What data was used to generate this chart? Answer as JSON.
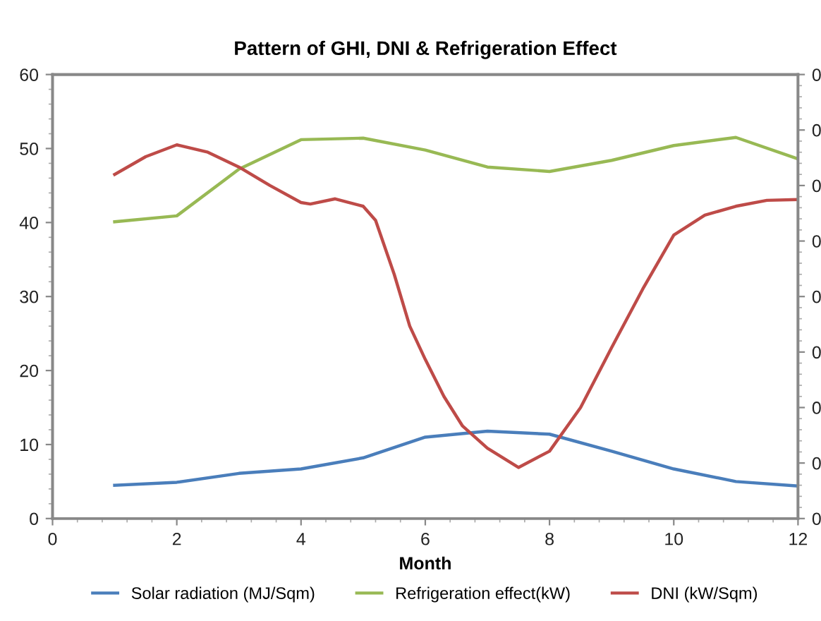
{
  "chart_data": {
    "type": "line",
    "title": "Pattern of GHI, DNI & Refrigeration Effect",
    "xlabel": "Month",
    "x": [
      1,
      2,
      3,
      4,
      5,
      6,
      7,
      8,
      9,
      10,
      11,
      12
    ],
    "series": [
      {
        "name": "Solar radiation (MJ/Sqm)",
        "color": "#4a7ebb",
        "values": [
          4.5,
          4.9,
          6.1,
          6.7,
          8.2,
          11,
          11.8,
          11.4,
          9.1,
          6.7,
          5.0,
          4.4
        ]
      },
      {
        "name": "Refrigeration effect(kW)",
        "color": "#98b954",
        "values": [
          40.1,
          40.9,
          47.2,
          51.2,
          51.4,
          49.8,
          47.5,
          46.9,
          48.4,
          50.4,
          51.5,
          48.6
        ]
      },
      {
        "name": "DNI (kW/Sqm)",
        "color": "#be4b48",
        "x": [
          1,
          1.5,
          2,
          2.5,
          3,
          3.5,
          4,
          4.15,
          4.55,
          5,
          5.2,
          5.5,
          5.75,
          6,
          6.3,
          6.6,
          7,
          7.5,
          8,
          8.5,
          9,
          9.5,
          10,
          10.5,
          11,
          11.5,
          12
        ],
        "values": [
          46.5,
          48.9,
          50.5,
          49.5,
          47.5,
          45,
          42.7,
          42.5,
          43.2,
          42.2,
          40.3,
          33,
          26,
          21.5,
          16.5,
          12.5,
          9.5,
          6.9,
          9.1,
          15,
          23.1,
          31,
          38.3,
          41,
          42.2,
          43,
          43.1
        ]
      }
    ],
    "xlim": [
      0,
      12
    ],
    "xticks": [
      0,
      2,
      4,
      6,
      8,
      10,
      12
    ],
    "ylim": [
      0,
      60
    ],
    "yticks": [
      0,
      10,
      20,
      30,
      40,
      50,
      60
    ],
    "y2lim": [
      0,
      0.4
    ],
    "y2ticks": [
      0,
      {
        "value": 0.05,
        "label": "0"
      },
      {
        "value": 0.1,
        "label": "0"
      },
      {
        "value": 0.15,
        "label": "0"
      },
      {
        "value": 0.2,
        "label": "0"
      },
      {
        "value": 0.25,
        "label": "0"
      },
      {
        "value": 0.3,
        "label": "0"
      },
      {
        "value": 0.35,
        "label": "0"
      },
      {
        "value": 0.4,
        "label": "0"
      }
    ],
    "legend": "bottom",
    "grid": false,
    "marker": "none",
    "line_style": "solid"
  }
}
